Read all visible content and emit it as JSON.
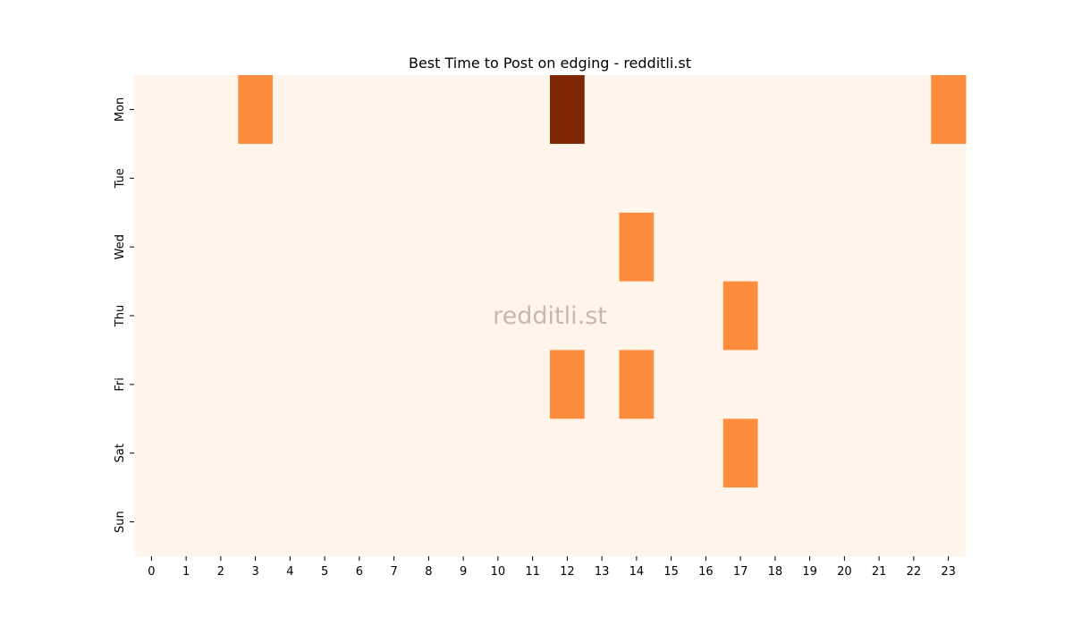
{
  "chart_data": {
    "type": "heatmap",
    "title": "Best Time to Post on edging - redditli.st",
    "watermark": "redditli.st",
    "x_categories": [
      "0",
      "1",
      "2",
      "3",
      "4",
      "5",
      "6",
      "7",
      "8",
      "9",
      "10",
      "11",
      "12",
      "13",
      "14",
      "15",
      "16",
      "17",
      "18",
      "19",
      "20",
      "21",
      "22",
      "23"
    ],
    "y_categories": [
      "Mon",
      "Tue",
      "Wed",
      "Thu",
      "Fri",
      "Sat",
      "Sun"
    ],
    "values": [
      [
        0,
        0,
        0,
        1,
        0,
        0,
        0,
        0,
        0,
        0,
        0,
        0,
        2,
        0,
        0,
        0,
        0,
        0,
        0,
        0,
        0,
        0,
        0,
        1
      ],
      [
        0,
        0,
        0,
        0,
        0,
        0,
        0,
        0,
        0,
        0,
        0,
        0,
        0,
        0,
        0,
        0,
        0,
        0,
        0,
        0,
        0,
        0,
        0,
        0
      ],
      [
        0,
        0,
        0,
        0,
        0,
        0,
        0,
        0,
        0,
        0,
        0,
        0,
        0,
        0,
        1,
        0,
        0,
        0,
        0,
        0,
        0,
        0,
        0,
        0
      ],
      [
        0,
        0,
        0,
        0,
        0,
        0,
        0,
        0,
        0,
        0,
        0,
        0,
        0,
        0,
        0,
        0,
        0,
        1,
        0,
        0,
        0,
        0,
        0,
        0
      ],
      [
        0,
        0,
        0,
        0,
        0,
        0,
        0,
        0,
        0,
        0,
        0,
        0,
        1,
        0,
        1,
        0,
        0,
        0,
        0,
        0,
        0,
        0,
        0,
        0
      ],
      [
        0,
        0,
        0,
        0,
        0,
        0,
        0,
        0,
        0,
        0,
        0,
        0,
        0,
        0,
        0,
        0,
        0,
        1,
        0,
        0,
        0,
        0,
        0,
        0
      ],
      [
        0,
        0,
        0,
        0,
        0,
        0,
        0,
        0,
        0,
        0,
        0,
        0,
        0,
        0,
        0,
        0,
        0,
        0,
        0,
        0,
        0,
        0,
        0,
        0
      ]
    ],
    "value_range": [
      0,
      2
    ],
    "colormap": "Oranges",
    "colors": {
      "low": "#fff5eb",
      "mid": "#fd8d3c",
      "high": "#7f2704"
    },
    "grid": false,
    "legend": "none"
  }
}
